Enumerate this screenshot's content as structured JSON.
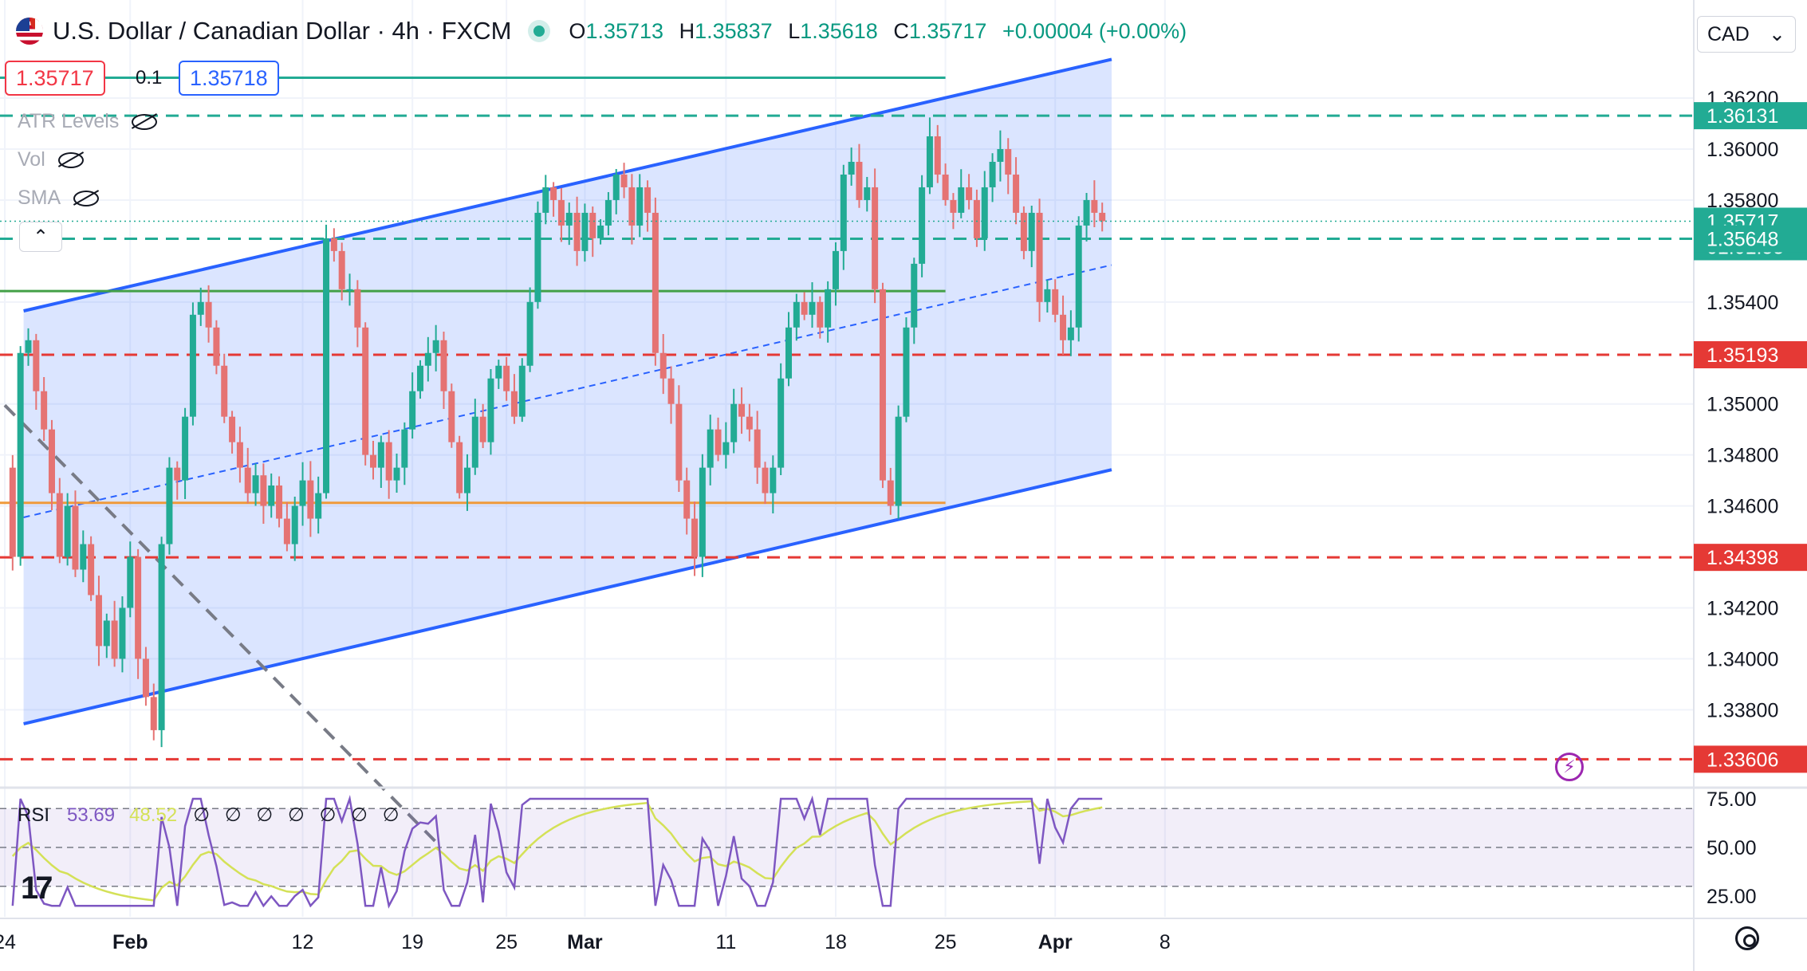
{
  "header": {
    "title": "U.S. Dollar / Canadian Dollar · 4h · FXCM",
    "ohlc": [
      {
        "label": "O",
        "value": "1.35713"
      },
      {
        "label": "H",
        "value": "1.35837"
      },
      {
        "label": "L",
        "value": "1.35618"
      },
      {
        "label": "C",
        "value": "1.35717"
      }
    ],
    "change": "+0.00004 (+0.00%)"
  },
  "trade": {
    "sell_price": "1.35717",
    "spread": "0.1",
    "buy_price": "1.35718"
  },
  "indicators": [
    {
      "label": "ATR Levels"
    },
    {
      "label": "Vol"
    },
    {
      "label": "SMA"
    }
  ],
  "currency_selector": {
    "value": "CAD",
    "icon": "chevron-down-icon"
  },
  "rsi": {
    "label": "RSI",
    "value": "53.69",
    "ma_value": "48.52",
    "extra": "∅ ∅ ∅ ∅ ∅ ∅ ∅",
    "ticks": [
      "75.00",
      "50.00",
      "25.00"
    ],
    "color": "#7e57c2",
    "ma_color": "#d4e157"
  },
  "colors": {
    "up": "#22ab94",
    "down": "#e57373",
    "channel": "#2962ff",
    "green_level": "#43a047",
    "red_level": "#e53935",
    "orange_level": "#ef9a3a"
  },
  "chart_data": {
    "type": "candlestick",
    "symbol": "USD/CAD",
    "timeframe": "4h",
    "ylim": [
      1.3345,
      1.3642
    ],
    "y_ticks": [
      "1.36200",
      "1.36000",
      "1.35800",
      "1.35400",
      "1.35000",
      "1.34800",
      "1.34600",
      "1.34200",
      "1.34000",
      "1.33800"
    ],
    "x_ticks": [
      {
        "label": "24",
        "t": 0
      },
      {
        "label": "Feb",
        "t": 8
      },
      {
        "label": "12",
        "t": 19
      },
      {
        "label": "19",
        "t": 26
      },
      {
        "label": "25",
        "t": 32
      },
      {
        "label": "Mar",
        "t": 37
      },
      {
        "label": "11",
        "t": 46
      },
      {
        "label": "18",
        "t": 53
      },
      {
        "label": "25",
        "t": 60
      },
      {
        "label": "Apr",
        "t": 67
      },
      {
        "label": "8",
        "t": 74
      }
    ],
    "price_labels": [
      {
        "value": "1.36131",
        "price": 1.36131,
        "color": "#22ab94"
      },
      {
        "value": "1.35717",
        "price": 1.35717,
        "color": "#22ab94",
        "countdown": "01:01:55"
      },
      {
        "value": "1.35648",
        "price": 1.35648,
        "color": "#22ab94"
      },
      {
        "value": "1.35193",
        "price": 1.35193,
        "color": "#e53935"
      },
      {
        "value": "1.34398",
        "price": 1.34398,
        "color": "#e53935"
      },
      {
        "value": "1.33606",
        "price": 1.33606,
        "color": "#e53935"
      }
    ],
    "horizontal_levels": [
      {
        "price": 1.36131,
        "style": "dashed",
        "color": "#22ab94"
      },
      {
        "price": 1.35648,
        "style": "dashed",
        "color": "#22ab94"
      },
      {
        "price": 1.35193,
        "style": "dashed",
        "color": "#e53935"
      },
      {
        "price": 1.34398,
        "style": "dashed",
        "color": "#e53935"
      },
      {
        "price": 1.33606,
        "style": "dashed",
        "color": "#e53935"
      },
      {
        "price": 1.3628,
        "style": "solid",
        "color": "#22ab94",
        "t_end": 60
      },
      {
        "price": 1.35443,
        "style": "solid",
        "color": "#43a047",
        "t_end": 60
      },
      {
        "price": 1.34612,
        "style": "solid",
        "color": "#ef9a3a",
        "t_end": 60
      }
    ],
    "channel": {
      "upper": [
        {
          "t": 1.2,
          "price": 1.35365
        },
        {
          "t": 70.6,
          "price": 1.36352
        }
      ],
      "lower": [
        {
          "t": 1.2,
          "price": 1.33745
        },
        {
          "t": 70.6,
          "price": 1.34742
        }
      ],
      "mid": [
        {
          "t": 1.2,
          "price": 1.34555
        },
        {
          "t": 70.6,
          "price": 1.35545
        }
      ]
    },
    "trendline_dashed": [
      {
        "t": 0,
        "price": 1.34995
      },
      {
        "t": 27.6,
        "price": 1.33275
      }
    ],
    "close_path": [
      [
        0,
        1.3475
      ],
      [
        0.5,
        1.344
      ],
      [
        1,
        1.352
      ],
      [
        1.5,
        1.3525
      ],
      [
        2,
        1.3505
      ],
      [
        2.5,
        1.349
      ],
      [
        3,
        1.3465
      ],
      [
        3.5,
        1.344
      ],
      [
        4,
        1.346
      ],
      [
        4.5,
        1.3435
      ],
      [
        5,
        1.3445
      ],
      [
        5.5,
        1.3425
      ],
      [
        6,
        1.3405
      ],
      [
        6.5,
        1.3415
      ],
      [
        7,
        1.34
      ],
      [
        7.5,
        1.342
      ],
      [
        8,
        1.344
      ],
      [
        8.5,
        1.34
      ],
      [
        9,
        1.3385
      ],
      [
        9.5,
        1.3372
      ],
      [
        10,
        1.3445
      ],
      [
        10.5,
        1.3475
      ],
      [
        11,
        1.347
      ],
      [
        11.5,
        1.3495
      ],
      [
        12,
        1.3535
      ],
      [
        12.5,
        1.354
      ],
      [
        13,
        1.353
      ],
      [
        13.5,
        1.3515
      ],
      [
        14,
        1.3495
      ],
      [
        14.5,
        1.3485
      ],
      [
        15,
        1.3475
      ],
      [
        15.5,
        1.3465
      ],
      [
        16,
        1.3472
      ],
      [
        16.5,
        1.346
      ],
      [
        17,
        1.3468
      ],
      [
        17.5,
        1.3455
      ],
      [
        18,
        1.3445
      ],
      [
        18.5,
        1.346
      ],
      [
        19,
        1.347
      ],
      [
        19.5,
        1.3455
      ],
      [
        20,
        1.3465
      ],
      [
        20.5,
        1.3565
      ],
      [
        21,
        1.356
      ],
      [
        21.5,
        1.3545
      ],
      [
        22,
        1.3545
      ],
      [
        22.5,
        1.353
      ],
      [
        23,
        1.348
      ],
      [
        23.5,
        1.3475
      ],
      [
        24,
        1.3485
      ],
      [
        24.5,
        1.347
      ],
      [
        25,
        1.3475
      ],
      [
        25.5,
        1.349
      ],
      [
        26,
        1.3505
      ],
      [
        26.5,
        1.3515
      ],
      [
        27,
        1.352
      ],
      [
        27.5,
        1.3525
      ],
      [
        28,
        1.3505
      ],
      [
        28.5,
        1.3485
      ],
      [
        29,
        1.3465
      ],
      [
        29.5,
        1.3475
      ],
      [
        30,
        1.3495
      ],
      [
        30.5,
        1.3485
      ],
      [
        31,
        1.351
      ],
      [
        31.5,
        1.3515
      ],
      [
        32,
        1.3505
      ],
      [
        32.5,
        1.3495
      ],
      [
        33,
        1.3515
      ],
      [
        33.5,
        1.354
      ],
      [
        34,
        1.3575
      ],
      [
        34.5,
        1.3585
      ],
      [
        35,
        1.358
      ],
      [
        35.5,
        1.357
      ],
      [
        36,
        1.3575
      ],
      [
        36.5,
        1.356
      ],
      [
        37,
        1.3575
      ],
      [
        37.5,
        1.3565
      ],
      [
        38,
        1.357
      ],
      [
        38.5,
        1.358
      ],
      [
        39,
        1.359
      ],
      [
        39.5,
        1.3585
      ],
      [
        40,
        1.357
      ],
      [
        40.5,
        1.3585
      ],
      [
        41,
        1.3575
      ],
      [
        41.5,
        1.352
      ],
      [
        42,
        1.351
      ],
      [
        42.5,
        1.35
      ],
      [
        43,
        1.347
      ],
      [
        43.5,
        1.3455
      ],
      [
        44,
        1.344
      ],
      [
        44.5,
        1.3475
      ],
      [
        45,
        1.349
      ],
      [
        45.5,
        1.348
      ],
      [
        46,
        1.3485
      ],
      [
        46.5,
        1.35
      ],
      [
        47,
        1.3495
      ],
      [
        47.5,
        1.349
      ],
      [
        48,
        1.3475
      ],
      [
        48.5,
        1.3465
      ],
      [
        49,
        1.3475
      ],
      [
        49.5,
        1.351
      ],
      [
        50,
        1.353
      ],
      [
        50.5,
        1.354
      ],
      [
        51,
        1.3535
      ],
      [
        51.5,
        1.354
      ],
      [
        52,
        1.353
      ],
      [
        52.5,
        1.3545
      ],
      [
        53,
        1.356
      ],
      [
        53.5,
        1.359
      ],
      [
        54,
        1.3595
      ],
      [
        54.5,
        1.358
      ],
      [
        55,
        1.3585
      ],
      [
        55.5,
        1.3545
      ],
      [
        56,
        1.347
      ],
      [
        56.5,
        1.346
      ],
      [
        57,
        1.3495
      ],
      [
        57.5,
        1.353
      ],
      [
        58,
        1.3555
      ],
      [
        58.5,
        1.3585
      ],
      [
        59,
        1.3605
      ],
      [
        59.5,
        1.359
      ],
      [
        60,
        1.358
      ],
      [
        60.5,
        1.3575
      ],
      [
        61,
        1.3585
      ],
      [
        61.5,
        1.358
      ],
      [
        62,
        1.3565
      ],
      [
        62.5,
        1.3585
      ],
      [
        63,
        1.3595
      ],
      [
        63.5,
        1.36
      ],
      [
        64,
        1.359
      ],
      [
        64.5,
        1.3575
      ],
      [
        65,
        1.356
      ],
      [
        65.5,
        1.3575
      ],
      [
        66,
        1.354
      ],
      [
        66.5,
        1.3545
      ],
      [
        67,
        1.3535
      ],
      [
        67.5,
        1.3525
      ],
      [
        68,
        1.353
      ],
      [
        68.5,
        1.357
      ],
      [
        69,
        1.358
      ],
      [
        69.5,
        1.3575
      ],
      [
        70,
        1.35717
      ]
    ]
  }
}
